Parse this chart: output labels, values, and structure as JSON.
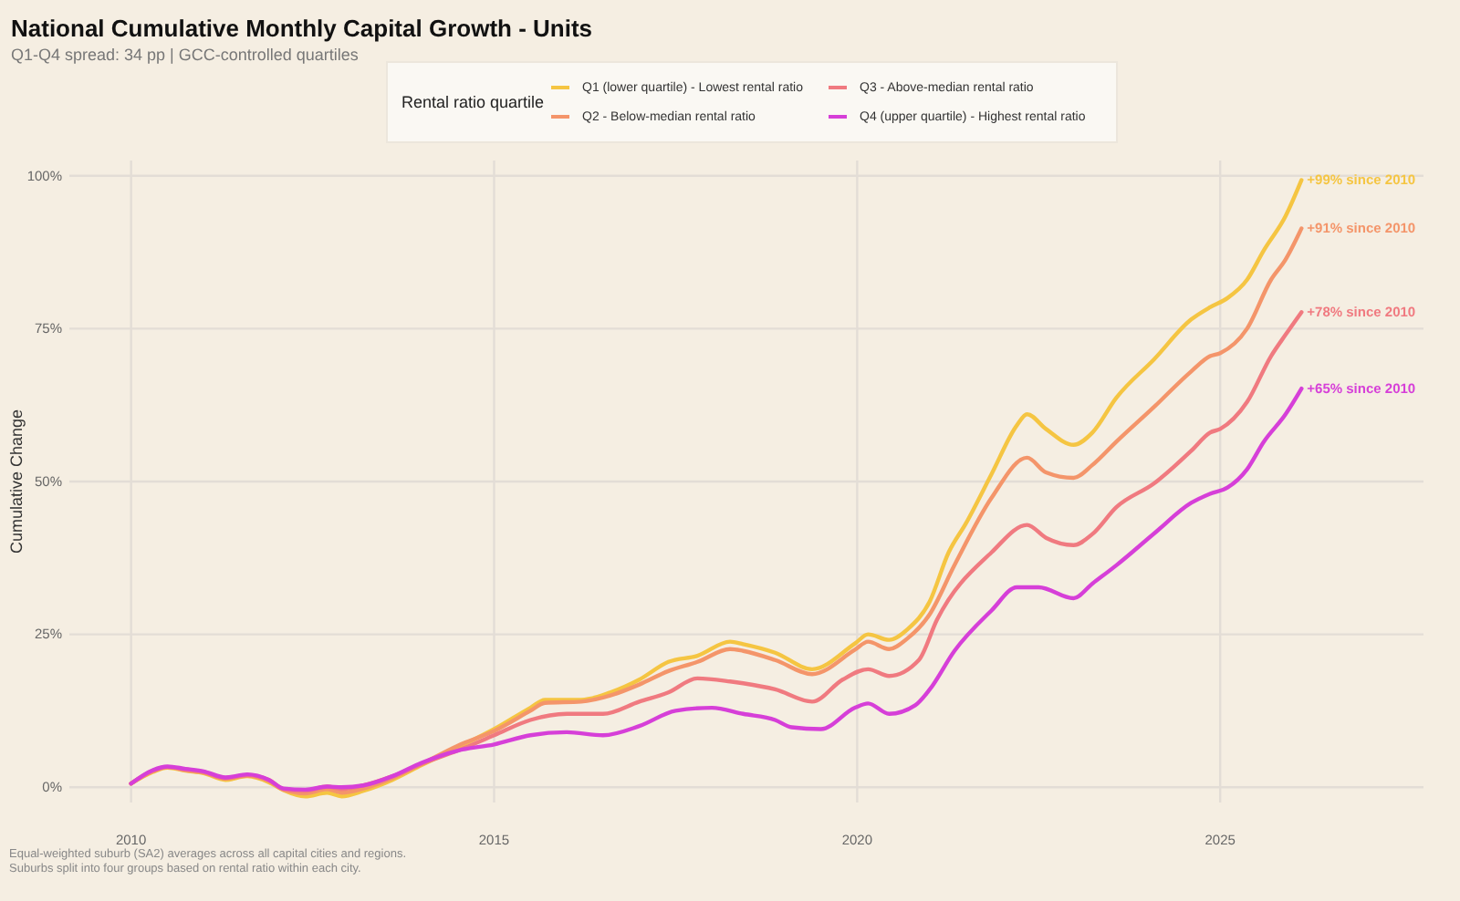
{
  "chart_data": {
    "type": "line",
    "title": "National Cumulative Monthly Capital Growth - Units",
    "subtitle": "Q1-Q4 spread: 34 pp | GCC-controlled quartiles",
    "ylabel": "Cumulative Change",
    "legend_title": "Rental ratio quartile",
    "legend": "top",
    "grid": true,
    "line_style": "solid",
    "marker": "none",
    "xlim": [
      2009.15,
      2027.8
    ],
    "xticks": [
      2010,
      2015,
      2020,
      2025
    ],
    "ylim": [
      -2.5,
      102.5
    ],
    "yticks": [
      {
        "value": 0,
        "label": "0%"
      },
      {
        "value": 25,
        "label": "25%"
      },
      {
        "value": 50,
        "label": "50%"
      },
      {
        "value": 75,
        "label": "75%"
      },
      {
        "value": 100,
        "label": "100%"
      }
    ],
    "series": [
      {
        "name": "Q1 (lower quartile) - Lowest rental ratio",
        "color": "#f5c542",
        "x": [
          2010,
          2010.3,
          2010.5,
          2010.75,
          2011,
          2011.3,
          2011.6,
          2011.9,
          2012.1,
          2012.4,
          2012.7,
          2012.9,
          2013.2,
          2013.6,
          2014,
          2014.5,
          2015,
          2015.5,
          2015.7,
          2016.2,
          2016.6,
          2017,
          2017.4,
          2017.8,
          2018.25,
          2018.43,
          2018.87,
          2019.38,
          2019.97,
          2020.15,
          2020.44,
          2020.7,
          2021,
          2021.26,
          2021.5,
          2021.85,
          2022.2,
          2022.34,
          2022.6,
          2022.98,
          2023.24,
          2023.57,
          2024.09,
          2024.6,
          2024.86,
          2025.1,
          2025.37,
          2025.6,
          2025.9,
          2026.12
        ],
        "values": [
          0.6,
          2.5,
          3.2,
          2.7,
          2.3,
          1.2,
          1.8,
          0.8,
          -0.5,
          -1.5,
          -0.9,
          -1.5,
          -0.6,
          1.2,
          3.6,
          6.5,
          9.5,
          13,
          14.3,
          14.3,
          15.5,
          17.6,
          20.5,
          21.5,
          23.8,
          23.4,
          22,
          19.3,
          23.5,
          25,
          24.1,
          25.9,
          30.4,
          38.4,
          43.2,
          51.2,
          59.2,
          61,
          58.6,
          56,
          58,
          63.7,
          70,
          76.5,
          78.5,
          80,
          83,
          87.8,
          93.4,
          99.3
        ]
      },
      {
        "name": "Q2 - Below-median rental ratio",
        "color": "#f4956a",
        "x": [
          2010,
          2010.3,
          2010.5,
          2010.75,
          2011,
          2011.3,
          2011.6,
          2011.9,
          2012.1,
          2012.4,
          2012.7,
          2012.9,
          2013.2,
          2013.6,
          2014,
          2014.5,
          2015,
          2015.5,
          2015.7,
          2016.2,
          2016.6,
          2017,
          2017.4,
          2017.8,
          2018.25,
          2018.43,
          2018.87,
          2019.38,
          2019.97,
          2020.15,
          2020.44,
          2020.7,
          2021,
          2021.34,
          2021.85,
          2022.34,
          2022.6,
          2022.98,
          2023.24,
          2023.57,
          2024.09,
          2024.6,
          2024.86,
          2025.0,
          2025.37,
          2025.7,
          2025.9,
          2026.12
        ],
        "values": [
          0.6,
          2.6,
          3.3,
          2.8,
          2.4,
          1.4,
          1.9,
          1,
          -0.4,
          -1,
          -0.3,
          -0.9,
          -0.2,
          1.5,
          3.8,
          6.8,
          9.2,
          12.5,
          13.8,
          14,
          15,
          16.8,
          19,
          20.5,
          22.6,
          22.3,
          20.8,
          18.5,
          22.5,
          23.8,
          22.6,
          24.4,
          28.3,
          36.3,
          47.3,
          53.9,
          51.5,
          50.6,
          52.7,
          56.5,
          62.2,
          68,
          70.5,
          71,
          75,
          83,
          86.3,
          91.4
        ]
      },
      {
        "name": "Q3 - Above-median rental ratio",
        "color": "#f07a80",
        "x": [
          2010,
          2010.3,
          2010.5,
          2010.75,
          2011,
          2011.3,
          2011.6,
          2011.9,
          2012.1,
          2012.4,
          2012.7,
          2012.9,
          2013.2,
          2013.6,
          2014,
          2014.5,
          2015,
          2015.5,
          2016,
          2016.5,
          2017,
          2017.4,
          2017.8,
          2018.25,
          2018.43,
          2018.87,
          2019.38,
          2019.8,
          2020.15,
          2020.44,
          2020.85,
          2021.1,
          2021.85,
          2022.34,
          2022.6,
          2022.98,
          2023.24,
          2023.57,
          2024.09,
          2024.6,
          2024.86,
          2025.0,
          2025.37,
          2025.7,
          2025.9,
          2026.12
        ],
        "values": [
          0.6,
          2.7,
          3.3,
          2.9,
          2.5,
          1.5,
          2,
          1.2,
          -0.3,
          -0.6,
          0.1,
          -0.3,
          0.3,
          1.8,
          3.8,
          6,
          8.5,
          11,
          12,
          12,
          14,
          15.5,
          17.8,
          17.3,
          17,
          16,
          14,
          17.6,
          19.3,
          18.2,
          20.8,
          27.4,
          38.4,
          42.9,
          40.8,
          39.6,
          41.4,
          45.8,
          49.7,
          55,
          58,
          58.6,
          63,
          70.5,
          74,
          77.7
        ]
      },
      {
        "name": "Q4 (upper quartile) - Highest rental ratio",
        "color": "#d63fd8",
        "x": [
          2010,
          2010.3,
          2010.5,
          2010.75,
          2011,
          2011.3,
          2011.6,
          2011.9,
          2012.1,
          2012.4,
          2012.7,
          2012.9,
          2013.2,
          2013.6,
          2014,
          2014.5,
          2015,
          2015.5,
          2016,
          2016.5,
          2017,
          2017.5,
          2018,
          2018.43,
          2018.87,
          2019.1,
          2019.5,
          2019.97,
          2020.15,
          2020.44,
          2020.8,
          2021,
          2021.34,
          2021.85,
          2022.2,
          2022.5,
          2022.98,
          2023.24,
          2023.57,
          2024.09,
          2024.6,
          2024.86,
          2025.1,
          2025.37,
          2025.6,
          2025.9,
          2026.12
        ],
        "values": [
          0.6,
          2.8,
          3.4,
          3,
          2.6,
          1.6,
          2.1,
          1.2,
          -0.2,
          -0.4,
          0.1,
          0,
          0.3,
          1.8,
          4,
          6,
          7,
          8.5,
          9,
          8.5,
          10,
          12.5,
          13,
          12,
          11,
          9.8,
          9.5,
          13,
          13.7,
          12,
          13.4,
          16,
          22.3,
          28.9,
          32.7,
          32.7,
          30.9,
          33.3,
          36.3,
          41.5,
          46.5,
          48,
          49,
          52,
          56.5,
          61,
          65.2
        ]
      }
    ],
    "annotations": [
      "+99% since 2010",
      "+91% since 2010",
      "+78% since 2010",
      "+65% since 2010",
      "Equal-weighted suburb (SA2) averages across all capital cities and regions.",
      "Suburbs split into four groups based on rental ratio within each city."
    ]
  }
}
